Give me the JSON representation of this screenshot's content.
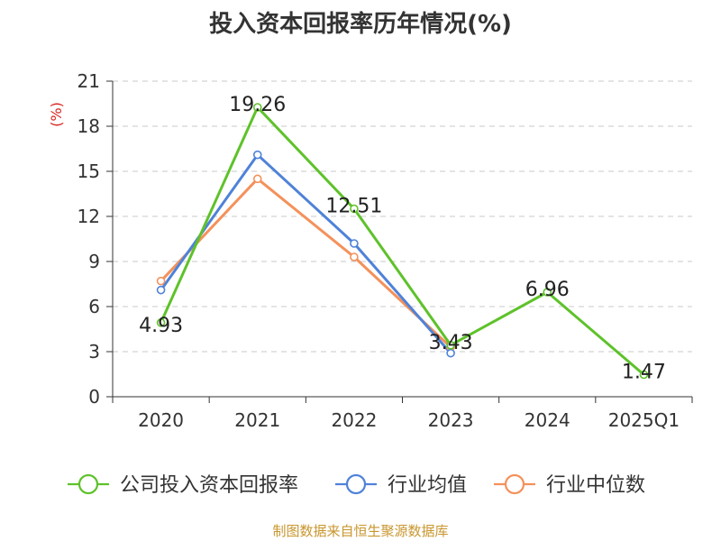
{
  "chart_data": {
    "type": "line",
    "title": "投入资本回报率历年情况(%)",
    "ylabel": "(%)",
    "xlabel": "",
    "categories": [
      "2020",
      "2021",
      "2022",
      "2023",
      "2024",
      "2025Q1"
    ],
    "ylim": [
      0,
      21
    ],
    "yticks": [
      0,
      3,
      6,
      9,
      12,
      15,
      18,
      21
    ],
    "grid": true,
    "legend_position": "bottom",
    "series": [
      {
        "name": "公司投入资本回报率",
        "color": "#5ec22a",
        "values": [
          4.93,
          19.26,
          12.51,
          3.43,
          6.96,
          1.47
        ],
        "labels": [
          "4.93",
          "19.26",
          "12.51",
          "3.43",
          "6.96",
          "1.47"
        ]
      },
      {
        "name": "行业均值",
        "color": "#4f82d8",
        "values": [
          7.1,
          16.1,
          10.2,
          2.9,
          null,
          null
        ]
      },
      {
        "name": "行业中位数",
        "color": "#f4915b",
        "values": [
          7.7,
          14.5,
          9.3,
          3.3,
          null,
          null
        ]
      }
    ]
  },
  "source": "制图数据来自恒生聚源数据库"
}
